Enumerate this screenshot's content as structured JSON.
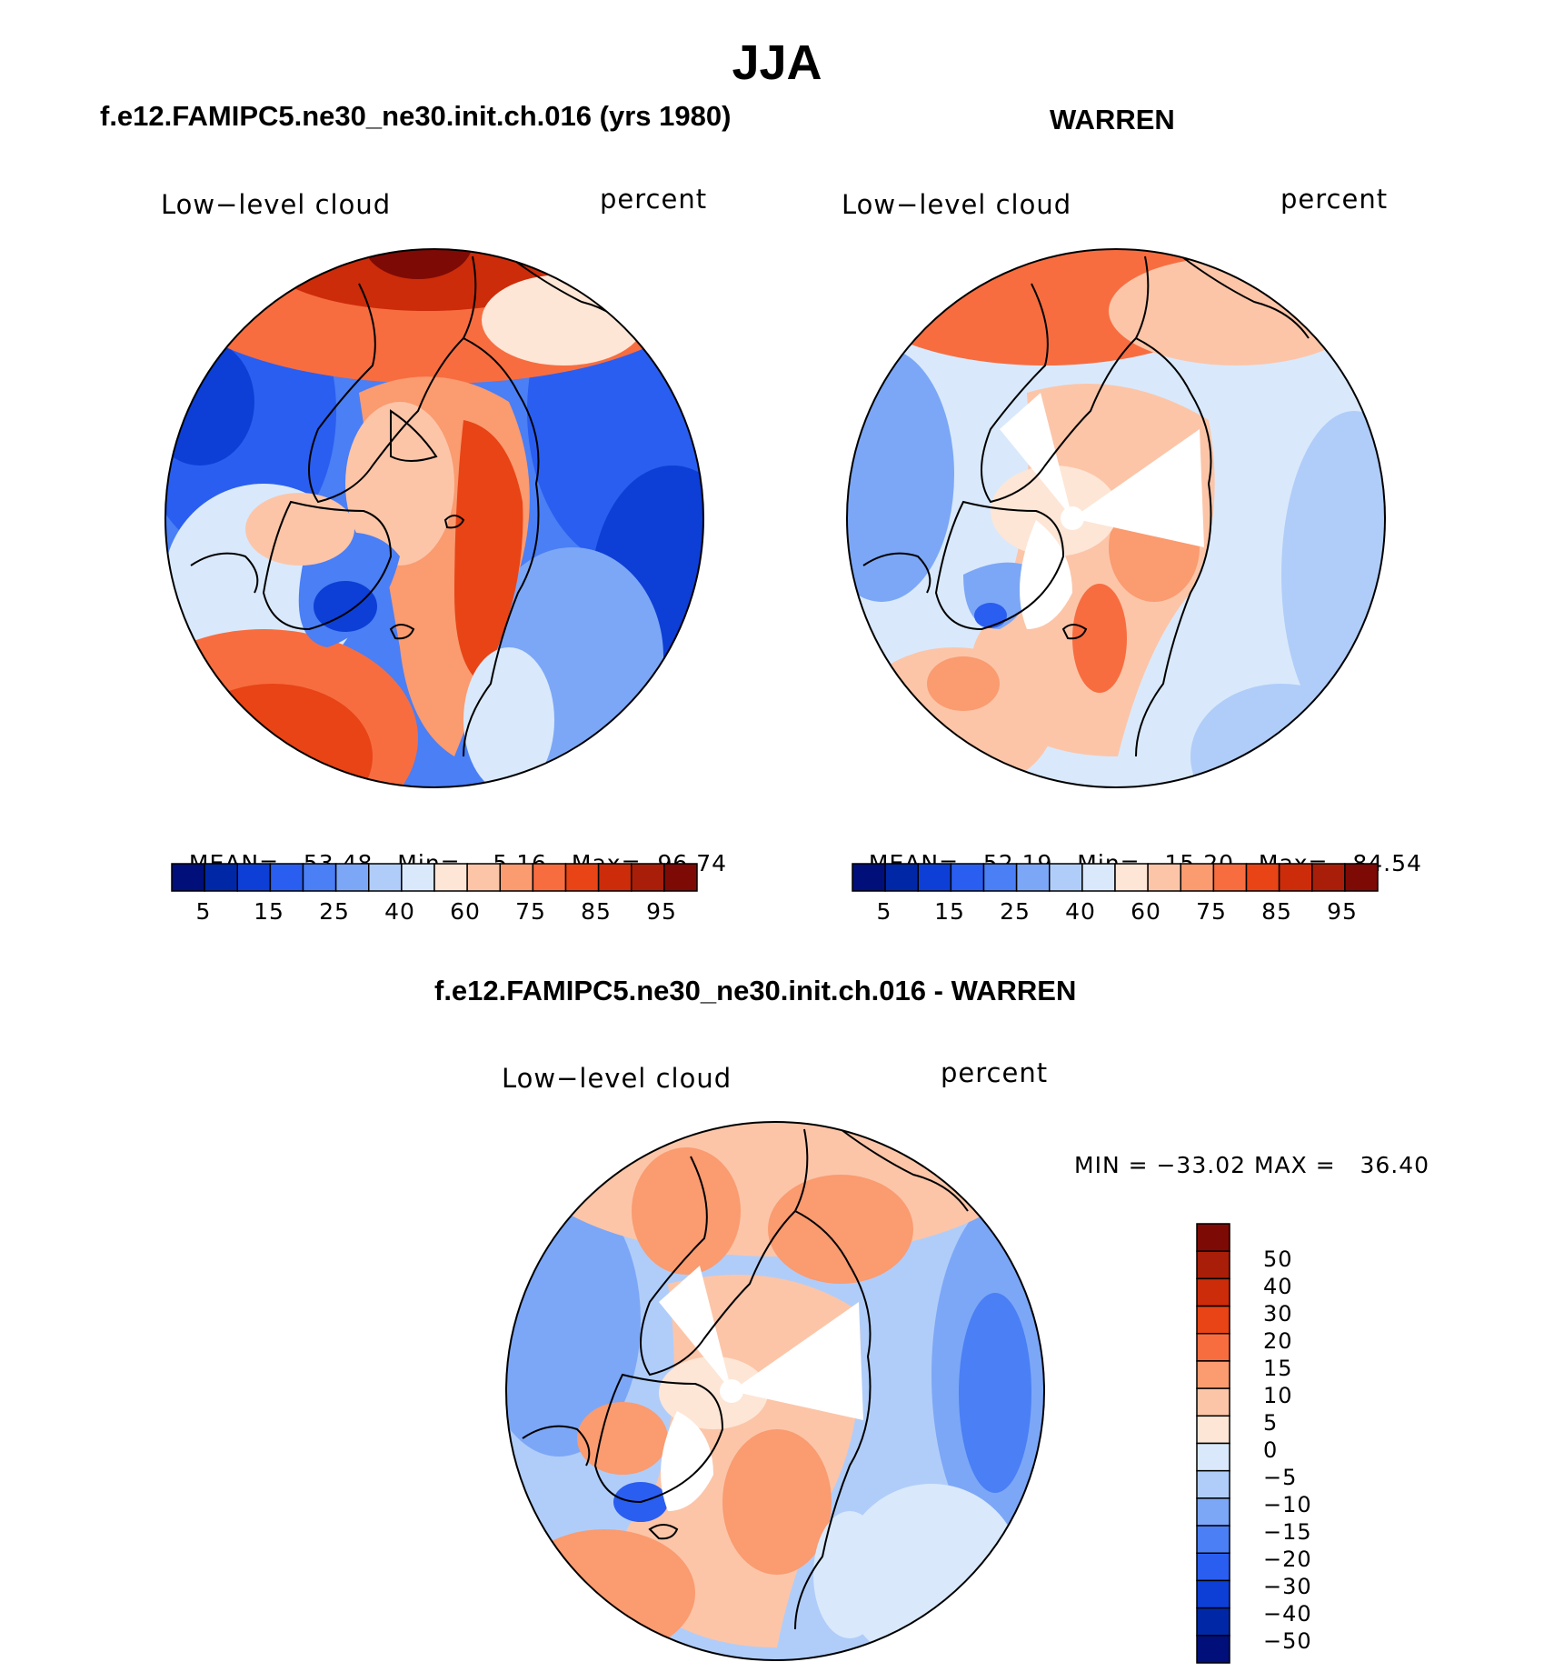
{
  "title": "JJA",
  "panels": [
    {
      "id": "model",
      "header": "f.e12.FAMIPC5.ne30_ne30.init.ch.016 (yrs 1980)",
      "variable": "Low−level cloud",
      "units": "percent",
      "stats": {
        "mean_label": "MEAN=",
        "mean": "53.48",
        "min_label": "Min=",
        "min": "5.16",
        "max_label": "Max=",
        "max": "96.74"
      }
    },
    {
      "id": "obs",
      "header": "WARREN",
      "variable": "Low−level cloud",
      "units": "percent",
      "stats": {
        "mean_label": "MEAN=",
        "mean": "52.19",
        "min_label": "Min=",
        "min": "15.20",
        "max_label": "Max=",
        "max": "84.54"
      }
    },
    {
      "id": "diff",
      "header": "f.e12.FAMIPC5.ne30_ne30.init.ch.016 - WARREN",
      "variable": "Low−level cloud",
      "units": "percent",
      "stats_text": "MIN = −33.02 MAX =   36.40"
    }
  ],
  "colorbars": {
    "abs": {
      "colors": [
        "#000f7a",
        "#0028a6",
        "#0d3fd6",
        "#2a5ef0",
        "#4a7ff5",
        "#7ca7f7",
        "#b0cdf9",
        "#d9e9fb",
        "#fde6d6",
        "#fcc5a8",
        "#fa9b70",
        "#f76d40",
        "#e84416",
        "#cc2c0a",
        "#a91e08",
        "#7e0a05"
      ],
      "labels": [
        "5",
        "15",
        "25",
        "40",
        "60",
        "75",
        "85",
        "95"
      ]
    },
    "diff": {
      "colors": [
        "#000f7a",
        "#0028a6",
        "#0d3fd6",
        "#2a5ef0",
        "#4a7ff5",
        "#7ca7f7",
        "#b0cdf9",
        "#d9e9fb",
        "#fde6d6",
        "#fcc5a8",
        "#fa9b70",
        "#f76d40",
        "#e84416",
        "#cc2c0a",
        "#a91e08",
        "#7e0a05"
      ],
      "labels": [
        "−50",
        "−40",
        "−30",
        "−20",
        "−15",
        "−10",
        "−5",
        "0",
        "5",
        "10",
        "15",
        "20",
        "30",
        "40",
        "50"
      ]
    }
  },
  "chart_data": [
    {
      "type": "heatmap",
      "title": "f.e12.FAMIPC5.ne30_ne30.init.ch.016 (yrs 1980)",
      "projection": "north polar stereographic",
      "variable": "Low-level cloud",
      "units": "percent",
      "levels": [
        5,
        10,
        15,
        20,
        25,
        30,
        40,
        50,
        60,
        70,
        75,
        80,
        85,
        90,
        95
      ],
      "mean": 53.48,
      "min": 5.16,
      "max": 96.74
    },
    {
      "type": "heatmap",
      "title": "WARREN",
      "projection": "north polar stereographic",
      "variable": "Low-level cloud",
      "units": "percent",
      "levels": [
        5,
        10,
        15,
        20,
        25,
        30,
        40,
        50,
        60,
        70,
        75,
        80,
        85,
        90,
        95
      ],
      "mean": 52.19,
      "min": 15.2,
      "max": 84.54
    },
    {
      "type": "heatmap",
      "title": "f.e12.FAMIPC5.ne30_ne30.init.ch.016 - WARREN",
      "projection": "north polar stereographic",
      "variable": "Low-level cloud",
      "units": "percent",
      "levels": [
        -50,
        -40,
        -30,
        -20,
        -15,
        -10,
        -5,
        0,
        5,
        10,
        15,
        20,
        30,
        40,
        50
      ],
      "min": -33.02,
      "max": 36.4
    }
  ]
}
